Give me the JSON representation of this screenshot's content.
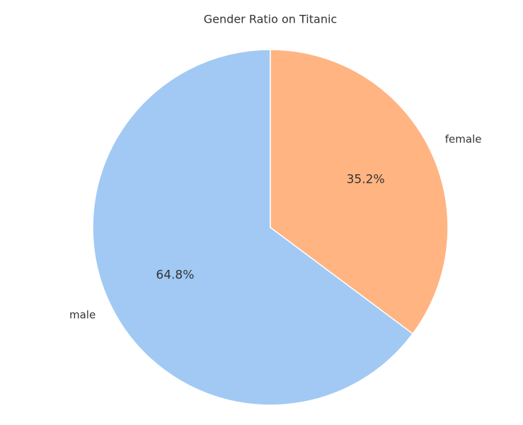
{
  "chart_data": {
    "type": "pie",
    "title": "Gender Ratio on Titanic",
    "categories": [
      "male",
      "female"
    ],
    "values": [
      64.8,
      35.2
    ],
    "value_labels": [
      "64.8%",
      "35.2%"
    ],
    "colors": [
      "#a1c9f4",
      "#ffb482"
    ]
  }
}
